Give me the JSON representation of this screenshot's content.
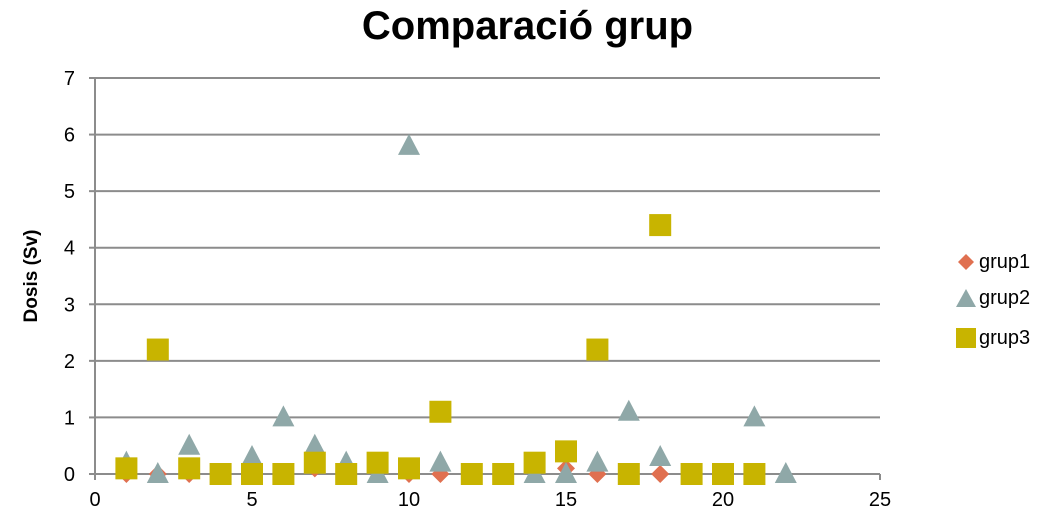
{
  "chart_data": {
    "type": "scatter",
    "title": "Comparació grup",
    "xlabel": "",
    "ylabel": "Dosis (Sv)",
    "xlim": [
      0,
      25
    ],
    "ylim": [
      0,
      7
    ],
    "xticks": [
      0,
      5,
      10,
      15,
      20,
      25
    ],
    "yticks": [
      0,
      1,
      2,
      3,
      4,
      5,
      6,
      7
    ],
    "grid": "horizontal",
    "legend_position": "right",
    "series": [
      {
        "name": "grup1",
        "marker": "diamond",
        "color": "#e07050",
        "points": [
          [
            1,
            0
          ],
          [
            2,
            0
          ],
          [
            3,
            0
          ],
          [
            7,
            0.1
          ],
          [
            10,
            0
          ],
          [
            11,
            0
          ],
          [
            15,
            0.1
          ],
          [
            16,
            0
          ],
          [
            18,
            0
          ]
        ]
      },
      {
        "name": "grup2",
        "marker": "triangle",
        "color": "#8fa8a8",
        "points": [
          [
            1,
            0.2
          ],
          [
            2,
            0
          ],
          [
            3,
            0.5
          ],
          [
            5,
            0.3
          ],
          [
            6,
            1.0
          ],
          [
            7,
            0.5
          ],
          [
            8,
            0.2
          ],
          [
            9,
            0
          ],
          [
            10,
            5.8
          ],
          [
            11,
            0.2
          ],
          [
            14,
            0
          ],
          [
            15,
            0
          ],
          [
            16,
            0.2
          ],
          [
            17,
            1.1
          ],
          [
            18,
            0.3
          ],
          [
            21,
            1.0
          ],
          [
            22,
            0
          ]
        ]
      },
      {
        "name": "grup3",
        "marker": "square",
        "color": "#c8b400",
        "points": [
          [
            1,
            0.1
          ],
          [
            2,
            2.2
          ],
          [
            3,
            0.1
          ],
          [
            4,
            0
          ],
          [
            5,
            0
          ],
          [
            6,
            0
          ],
          [
            7,
            0.2
          ],
          [
            8,
            0
          ],
          [
            9,
            0.2
          ],
          [
            10,
            0.1
          ],
          [
            11,
            1.1
          ],
          [
            12,
            0
          ],
          [
            13,
            0
          ],
          [
            14,
            0.2
          ],
          [
            15,
            0.4
          ],
          [
            16,
            2.2
          ],
          [
            17,
            0
          ],
          [
            18,
            4.4
          ],
          [
            19,
            0
          ],
          [
            20,
            0
          ],
          [
            21,
            0
          ]
        ]
      }
    ]
  }
}
